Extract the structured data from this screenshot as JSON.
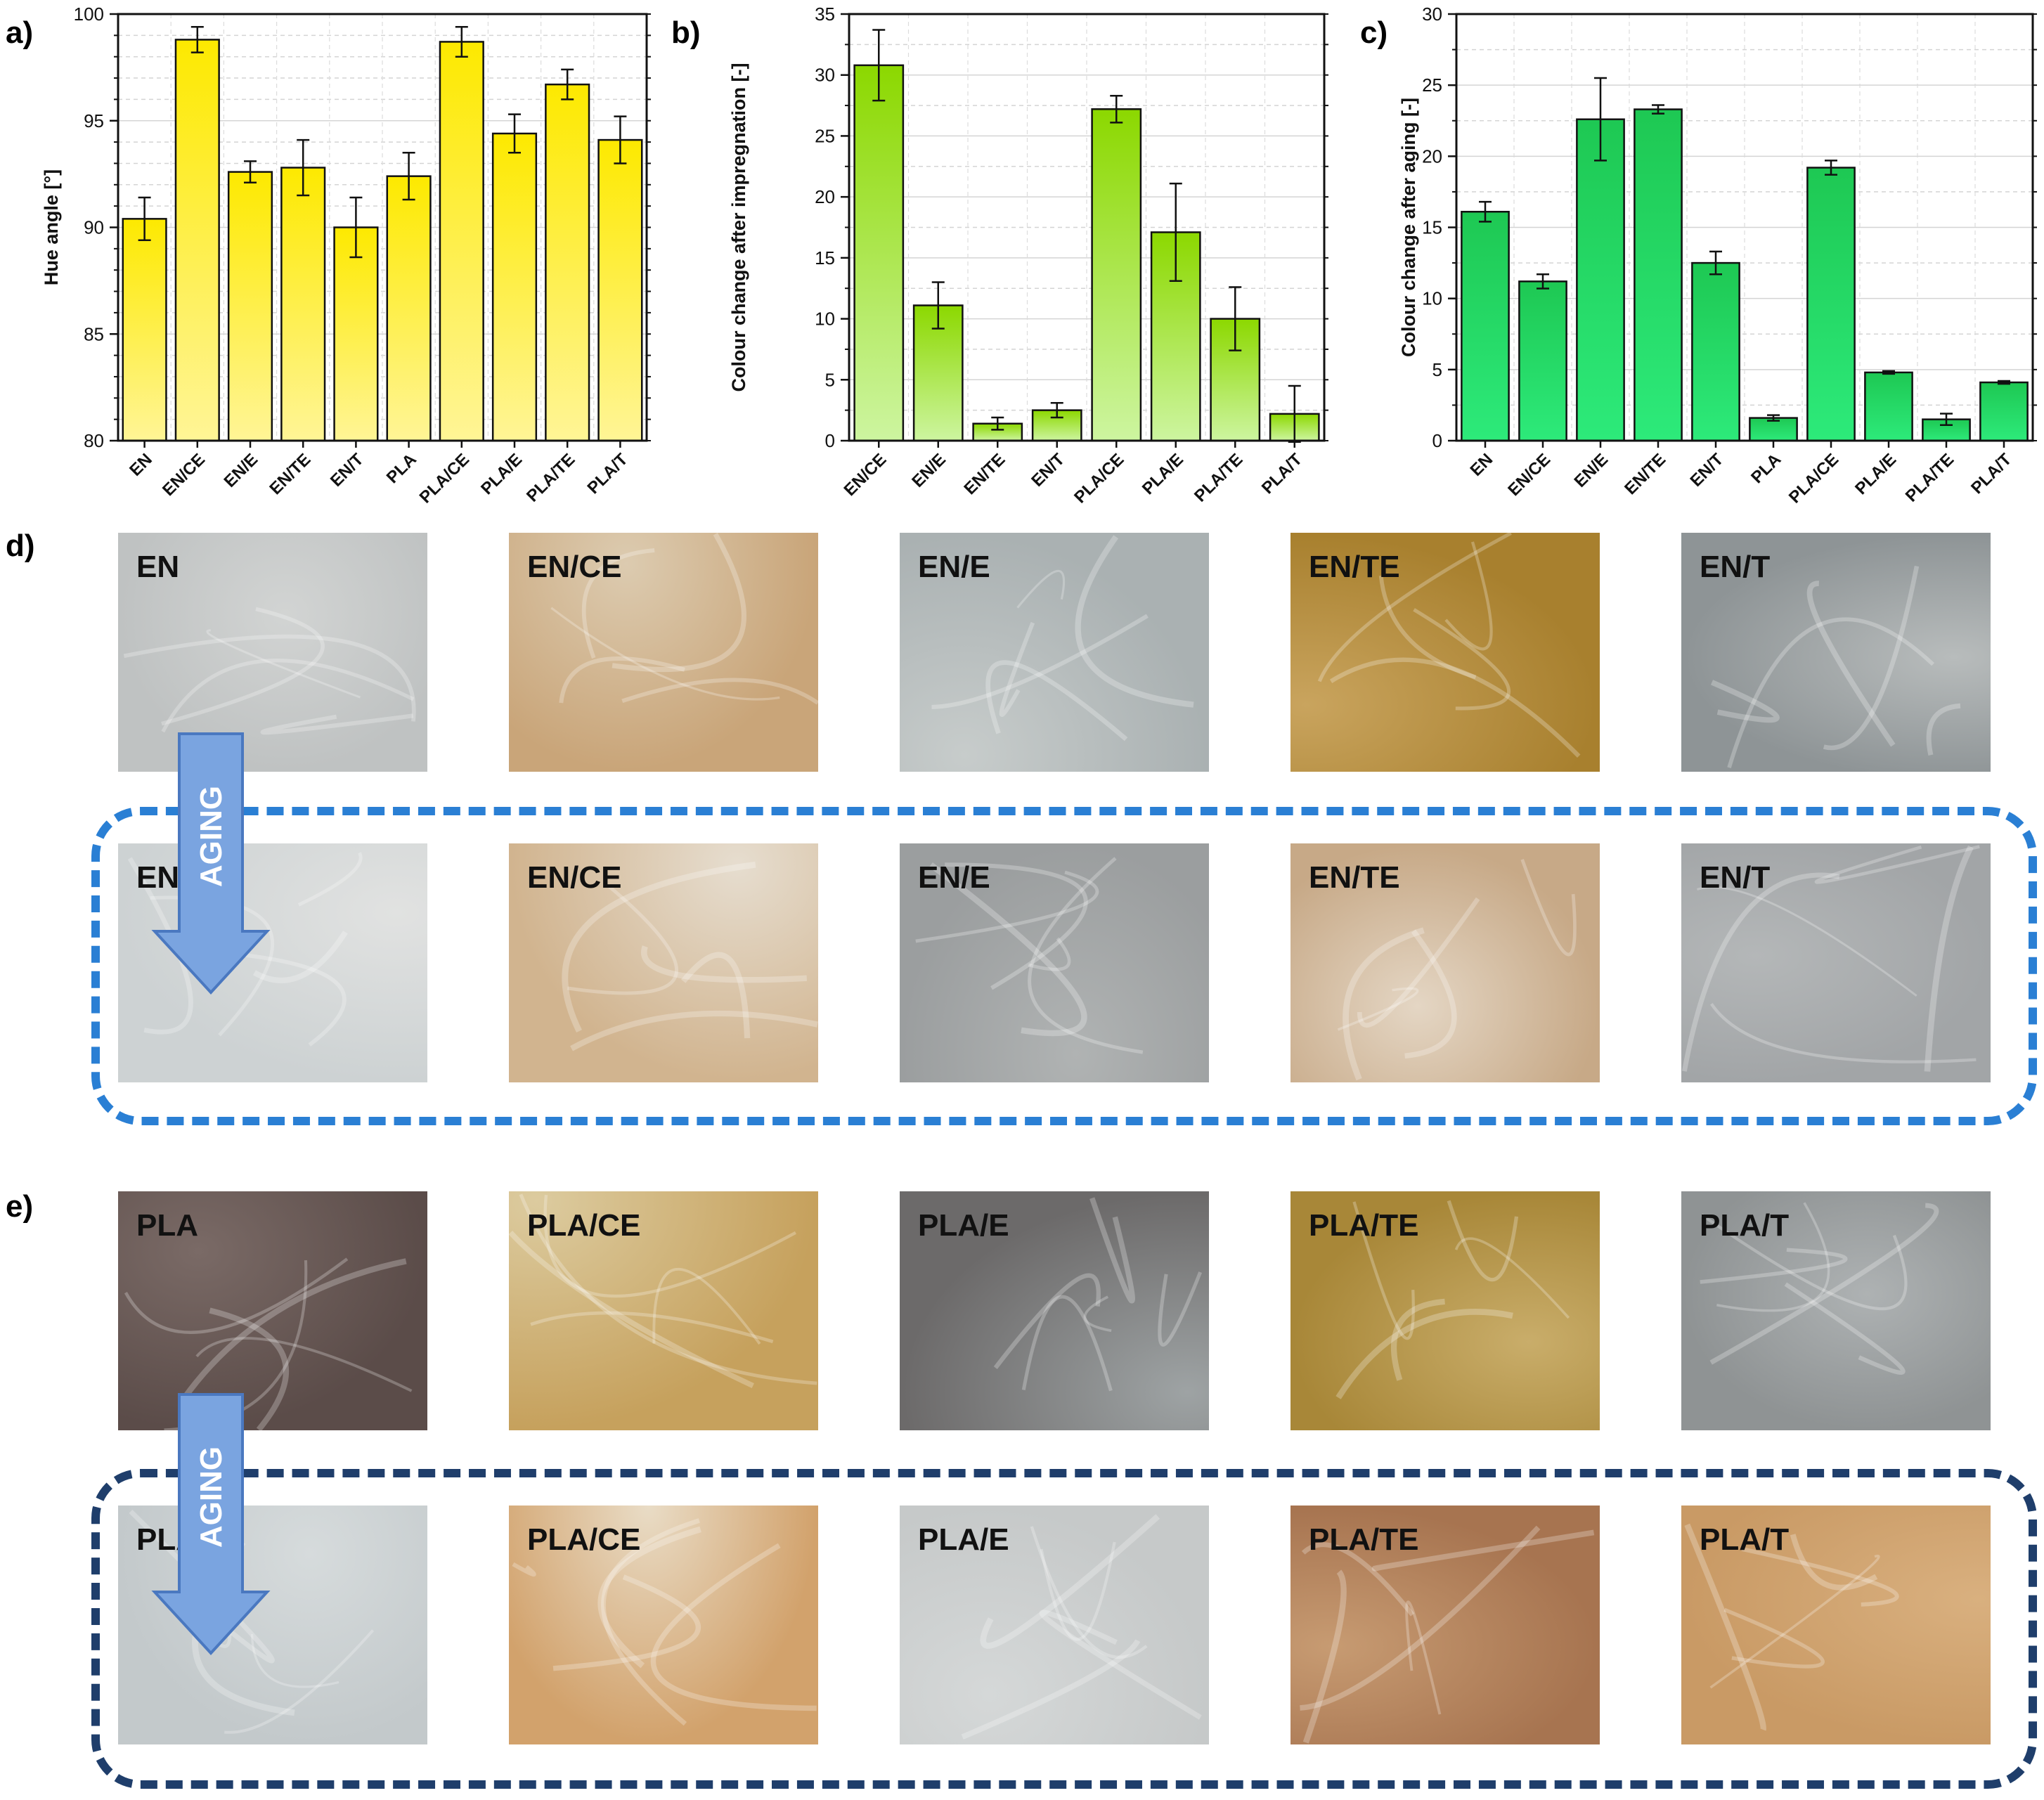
{
  "panel_labels": {
    "a": "a)",
    "b": "b)",
    "c": "c)",
    "d": "d)",
    "e": "e)"
  },
  "colors": {
    "bar_yellow_top": "#fde900",
    "bar_yellow_bottom": "#fff596",
    "bar_lime_top": "#8cd800",
    "bar_lime_bottom": "#cdf5a0",
    "bar_green_top": "#1ec853",
    "bar_green_bottom": "#2dea7a",
    "dash_en": "#2a7fd4",
    "dash_pla": "#1f3e6b",
    "arrow_fill": "#7aa4e0",
    "arrow_stroke": "#4a78c0"
  },
  "chart_data": [
    {
      "type": "bar",
      "title": "",
      "xlabel": "",
      "ylabel": "Hue angle [°]",
      "ylim": [
        80,
        100
      ],
      "yticks": [
        "80",
        "85",
        "90",
        "95",
        "100"
      ],
      "grid": true,
      "categories": [
        "EN",
        "EN/CE",
        "EN/E",
        "EN/TE",
        "EN/T",
        "PLA",
        "PLA/CE",
        "PLA/E",
        "PLA/TE",
        "PLA/T"
      ],
      "values": [
        90.4,
        98.8,
        92.6,
        92.8,
        90.0,
        92.4,
        98.7,
        94.4,
        96.7,
        94.1
      ],
      "errors": [
        1.0,
        0.6,
        0.5,
        1.3,
        1.4,
        1.1,
        0.7,
        0.9,
        0.7,
        1.1
      ]
    },
    {
      "type": "bar",
      "title": "",
      "xlabel": "",
      "ylabel": "Colour change after impregnation [-]",
      "ylim": [
        0,
        35
      ],
      "yticks": [
        "0",
        "5",
        "10",
        "15",
        "20",
        "25",
        "30",
        "35"
      ],
      "grid": true,
      "categories": [
        "EN/CE",
        "EN/E",
        "EN/TE",
        "EN/T",
        "PLA/CE",
        "PLA/E",
        "PLA/TE",
        "PLA/T"
      ],
      "values": [
        30.8,
        11.1,
        1.4,
        2.5,
        27.2,
        17.1,
        10.0,
        2.2
      ],
      "errors": [
        2.9,
        1.9,
        0.5,
        0.6,
        1.1,
        4.0,
        2.6,
        2.3
      ]
    },
    {
      "type": "bar",
      "title": "",
      "xlabel": "",
      "ylabel": "Colour change after aging [-]",
      "ylim": [
        0,
        30
      ],
      "yticks": [
        "0",
        "5",
        "10",
        "15",
        "20",
        "25",
        "30"
      ],
      "grid": true,
      "categories": [
        "EN",
        "EN/CE",
        "EN/E",
        "EN/TE",
        "EN/T",
        "PLA",
        "PLA/CE",
        "PLA/E",
        "PLA/TE",
        "PLA/T"
      ],
      "values": [
        16.1,
        11.2,
        22.6,
        23.3,
        12.5,
        1.6,
        19.2,
        4.8,
        1.5,
        4.1
      ],
      "errors": [
        0.7,
        0.5,
        2.9,
        0.3,
        0.8,
        0.2,
        0.5,
        0.1,
        0.4,
        0.1
      ]
    }
  ],
  "photos": {
    "aging_label": "AGING",
    "en_before": [
      {
        "label": "EN",
        "bg": "#d2d4d3",
        "bg2": "#bfc2c2"
      },
      {
        "label": "EN/CE",
        "bg": "#dccbb0",
        "bg2": "#c9a579"
      },
      {
        "label": "EN/E",
        "bg": "#c7cccb",
        "bg2": "#aab1b2"
      },
      {
        "label": "EN/TE",
        "bg": "#c9a45e",
        "bg2": "#a8802e"
      },
      {
        "label": "EN/T",
        "bg": "#b8bcbc",
        "bg2": "#8e9496"
      }
    ],
    "en_after": [
      {
        "label": "EN",
        "bg": "#e1e2e1",
        "bg2": "#cdd2d3"
      },
      {
        "label": "EN/CE",
        "bg": "#e6ddcf",
        "bg2": "#d1b48f"
      },
      {
        "label": "EN/E",
        "bg": "#b0b3b3",
        "bg2": "#9b9e9f"
      },
      {
        "label": "EN/TE",
        "bg": "#e4d6c4",
        "bg2": "#c7a987"
      },
      {
        "label": "EN/T",
        "bg": "#b4b7b8",
        "bg2": "#a2a5a7"
      }
    ],
    "pla_before": [
      {
        "label": "PLA",
        "bg": "#7a6a66",
        "bg2": "#5b4c49"
      },
      {
        "label": "PLA/CE",
        "bg": "#dccb9f",
        "bg2": "#c6a15d"
      },
      {
        "label": "PLA/E",
        "bg": "#9ea3a4",
        "bg2": "#6c6a6a"
      },
      {
        "label": "PLA/TE",
        "bg": "#c9ad6a",
        "bg2": "#a88738"
      },
      {
        "label": "PLA/T",
        "bg": "#aeb2b3",
        "bg2": "#8f9394"
      }
    ],
    "pla_after": [
      {
        "label": "PLA",
        "bg": "#d6dbdc",
        "bg2": "#c3c9cb"
      },
      {
        "label": "PLA/CE",
        "bg": "#e9dcc6",
        "bg2": "#d2a26c"
      },
      {
        "label": "PLA/E",
        "bg": "#d5d8d8",
        "bg2": "#c6c9c9"
      },
      {
        "label": "PLA/TE",
        "bg": "#c79b72",
        "bg2": "#a77450"
      },
      {
        "label": "PLA/T",
        "bg": "#d9b07f",
        "bg2": "#c99a65"
      }
    ]
  }
}
